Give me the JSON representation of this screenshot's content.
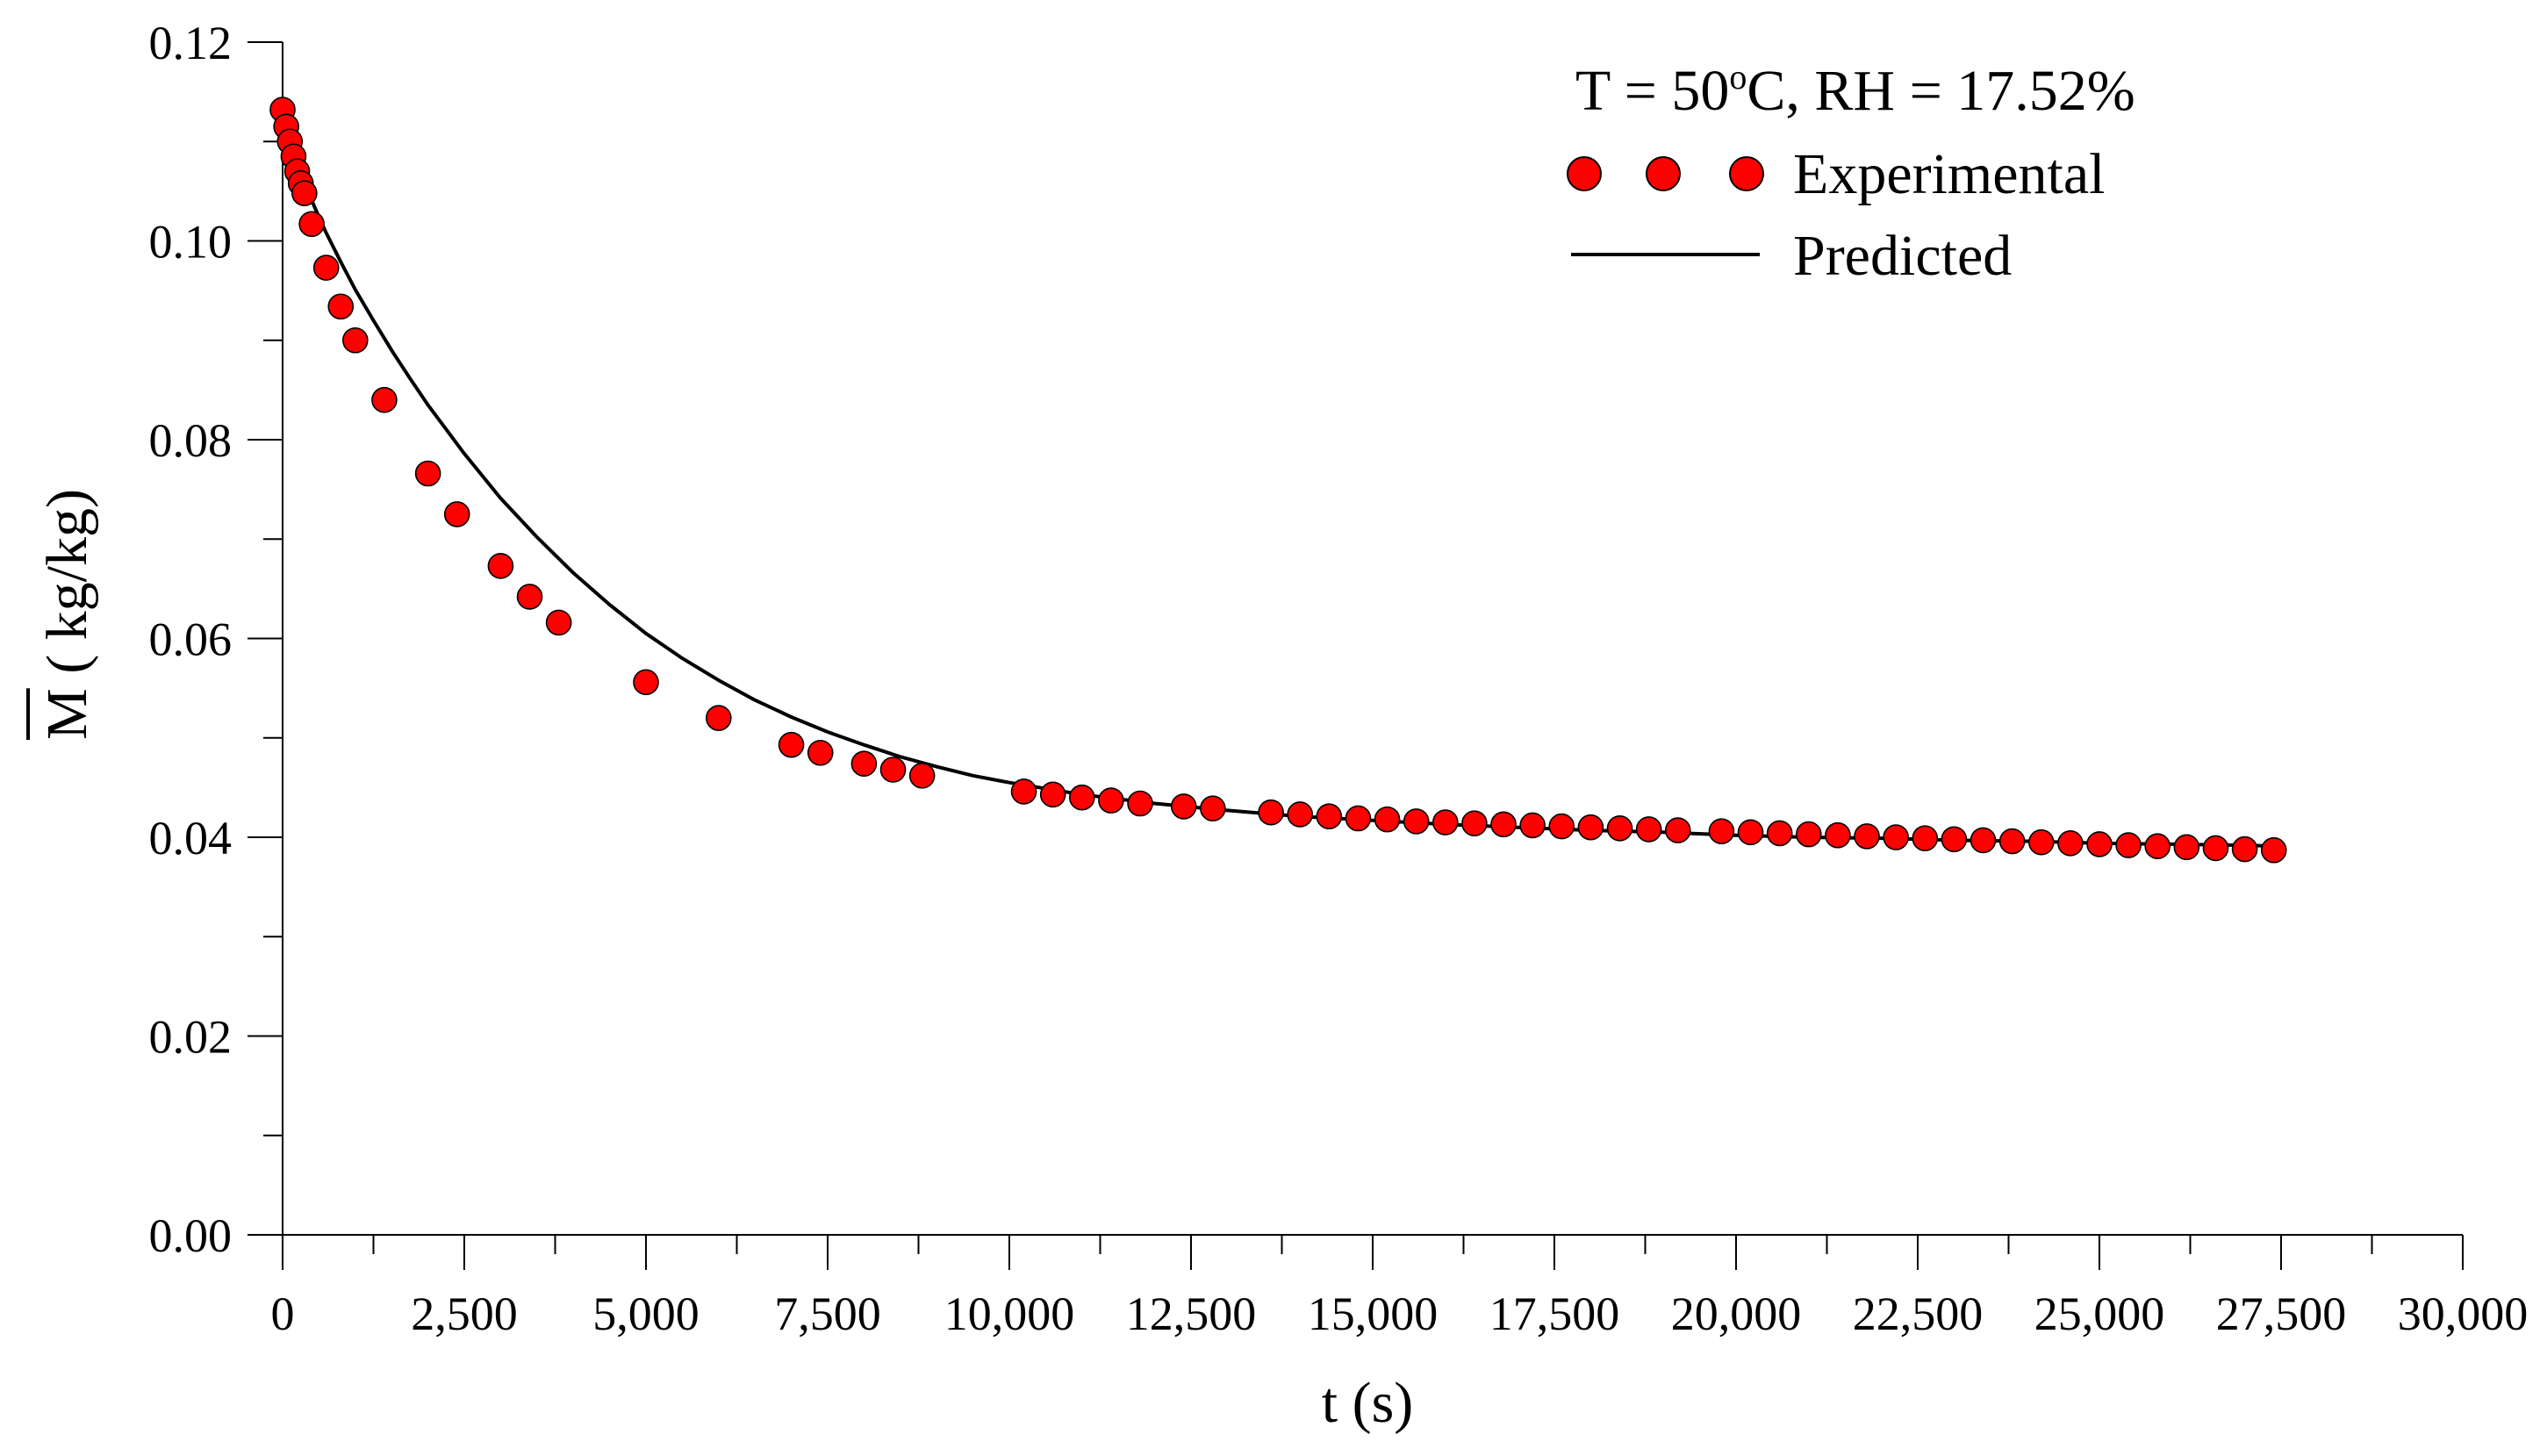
{
  "chart_data": {
    "type": "scatter",
    "title": "",
    "annotation": {
      "prefix": "T = 50",
      "superscript": "o",
      "suffix": "C,   RH = 17.52%"
    },
    "xlabel": "t (s)",
    "ylabel_symbol": "M",
    "ylabel_units": " ( kg/kg)",
    "xlim": [
      0,
      30000
    ],
    "ylim": [
      0,
      0.12
    ],
    "x_ticks": [
      0,
      2500,
      5000,
      7500,
      10000,
      12500,
      15000,
      17500,
      20000,
      22500,
      25000,
      27500,
      30000
    ],
    "x_tick_labels": [
      "0",
      "2,500",
      "5,000",
      "7,500",
      "10,000",
      "12,500",
      "15,000",
      "17,500",
      "20,000",
      "22,500",
      "25,000",
      "27,500",
      "30,000"
    ],
    "y_ticks": [
      0,
      0.02,
      0.04,
      0.06,
      0.08,
      0.1,
      0.12
    ],
    "y_tick_labels": [
      "0.00",
      "0.02",
      "0.04",
      "0.06",
      "0.08",
      "0.10",
      "0.12"
    ],
    "grid": false,
    "legend": {
      "position": "top-right",
      "entries": [
        {
          "label": "Experimental",
          "style": "markers"
        },
        {
          "label": "Predicted",
          "style": "line"
        }
      ]
    },
    "series": [
      {
        "name": "Experimental",
        "kind": "scatter",
        "color": "#ff0000",
        "edge_color": "#000000",
        "x": [
          0,
          50,
          100,
          150,
          200,
          250,
          300,
          400,
          600,
          800,
          1000,
          1400,
          2000,
          2400,
          3000,
          3400,
          3800,
          5000,
          6000,
          7000,
          7400,
          8000,
          8400,
          8800,
          10200,
          10600,
          11000,
          11400,
          11800,
          12400,
          12800,
          13600,
          14000,
          14400,
          14800,
          15200,
          15600,
          16000,
          16400,
          16800,
          17200,
          17600,
          18000,
          18400,
          18800,
          19200,
          19800,
          20200,
          20600,
          21000,
          21400,
          21800,
          22200,
          22600,
          23000,
          23400,
          23800,
          24200,
          24600,
          25000,
          25400,
          25800,
          26200,
          26600,
          27000,
          27400
        ],
        "y": [
          0.1132,
          0.1115,
          0.11,
          0.1085,
          0.107,
          0.1058,
          0.1048,
          0.1017,
          0.0973,
          0.0934,
          0.09,
          0.084,
          0.0766,
          0.0725,
          0.0673,
          0.0642,
          0.0616,
          0.0556,
          0.052,
          0.0493,
          0.0485,
          0.0474,
          0.0468,
          0.0462,
          0.0446,
          0.0443,
          0.044,
          0.0437,
          0.0434,
          0.0431,
          0.0429,
          0.0425,
          0.0423,
          0.0421,
          0.0419,
          0.0418,
          0.0416,
          0.0415,
          0.0414,
          0.0413,
          0.0412,
          0.0411,
          0.041,
          0.0409,
          0.0408,
          0.0407,
          0.0406,
          0.0405,
          0.0404,
          0.0403,
          0.0402,
          0.0401,
          0.04,
          0.0399,
          0.0398,
          0.0397,
          0.0396,
          0.0395,
          0.0394,
          0.0393,
          0.0392,
          0.0391,
          0.039,
          0.0389,
          0.0388,
          0.0387
        ]
      },
      {
        "name": "Predicted",
        "kind": "line",
        "color": "#000000",
        "x": [
          0,
          100,
          200,
          300,
          400,
          500,
          600,
          800,
          1000,
          1250,
          1500,
          1750,
          2000,
          2500,
          3000,
          3500,
          4000,
          4500,
          5000,
          5500,
          6000,
          6500,
          7000,
          7500,
          8000,
          8500,
          9000,
          9500,
          10000,
          11000,
          12000,
          13000,
          14000,
          15000,
          16000,
          17000,
          18000,
          19000,
          20000,
          21000,
          22000,
          23000,
          24000,
          25000,
          26000,
          27000,
          27500
        ],
        "y": [
          0.1135,
          0.1102,
          0.1079,
          0.1059,
          0.1041,
          0.1024,
          0.1008,
          0.0979,
          0.0951,
          0.092,
          0.089,
          0.0862,
          0.0835,
          0.0786,
          0.0741,
          0.0702,
          0.0666,
          0.0634,
          0.0605,
          0.058,
          0.0558,
          0.0538,
          0.0521,
          0.0506,
          0.0493,
          0.0481,
          0.0471,
          0.0462,
          0.0455,
          0.0443,
          0.0434,
          0.0427,
          0.0421,
          0.0417,
          0.0413,
          0.041,
          0.0407,
          0.0405,
          0.0402,
          0.04,
          0.0399,
          0.0397,
          0.0396,
          0.0394,
          0.0393,
          0.0392,
          0.0391
        ]
      }
    ]
  }
}
